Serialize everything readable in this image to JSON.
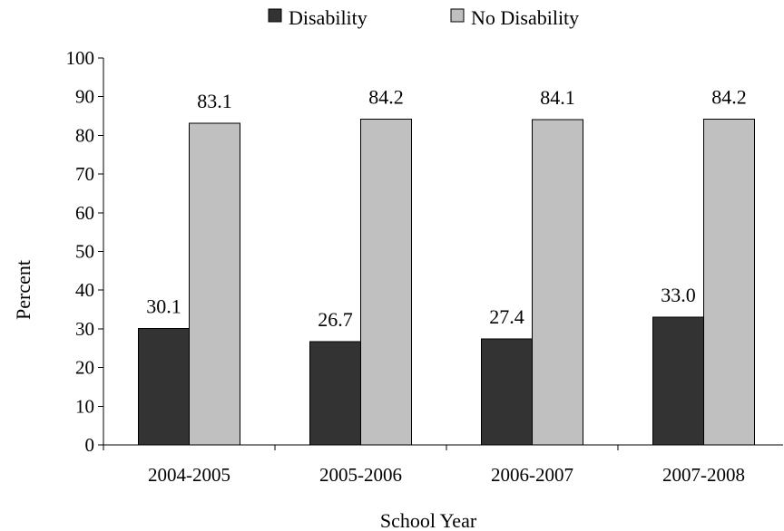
{
  "chart_data": {
    "type": "bar",
    "title": "",
    "xlabel": "School Year",
    "ylabel": "Percent",
    "ylim": [
      0,
      100
    ],
    "ytick_step": 10,
    "grid": false,
    "legend_position": "top-center",
    "categories": [
      "2004-2005",
      "2005-2006",
      "2006-2007",
      "2007-2008"
    ],
    "series": [
      {
        "name": "Disability",
        "color": "#333333",
        "values": [
          30.1,
          26.7,
          27.4,
          33.0
        ],
        "labels": [
          "30.1",
          "26.7",
          "27.4",
          "33.0"
        ]
      },
      {
        "name": "No Disability",
        "color": "#c0c0c0",
        "values": [
          83.1,
          84.2,
          84.1,
          84.2
        ],
        "labels": [
          "83.1",
          "84.2",
          "84.1",
          "84.2"
        ]
      }
    ]
  }
}
